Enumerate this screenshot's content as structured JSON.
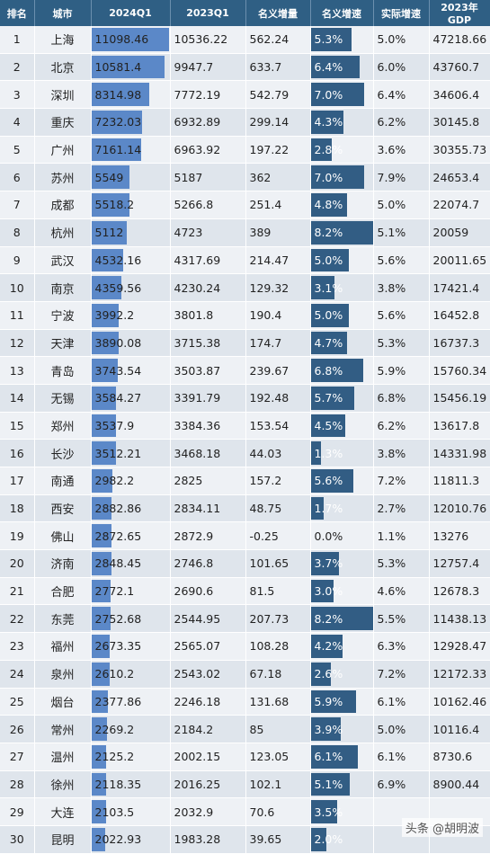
{
  "headers": [
    "排名",
    "城市",
    "2024Q1",
    "2023Q1",
    "名义增量",
    "名义增速",
    "实际增速",
    "2023年GDP"
  ],
  "credit": "头条 @胡明波",
  "colors": {
    "header": "#2f5f84",
    "bar_2024q1": "#5b88c8",
    "bar_rate": "#325d84"
  },
  "rows": [
    {
      "rank": "1",
      "city": "上海",
      "q1_2024": "11098.46",
      "q1_2023": "10536.22",
      "inc": "562.24",
      "rate": "5.3%",
      "real": "5.0%",
      "gdp2023": "47218.66",
      "q1_val": 11098.46,
      "rate_val": 5.3
    },
    {
      "rank": "2",
      "city": "北京",
      "q1_2024": "10581.4",
      "q1_2023": "9947.7",
      "inc": "633.7",
      "rate": "6.4%",
      "real": "6.0%",
      "gdp2023": "43760.7",
      "q1_val": 10581.4,
      "rate_val": 6.4
    },
    {
      "rank": "3",
      "city": "深圳",
      "q1_2024": "8314.98",
      "q1_2023": "7772.19",
      "inc": "542.79",
      "rate": "7.0%",
      "real": "6.4%",
      "gdp2023": "34606.4",
      "q1_val": 8314.98,
      "rate_val": 7.0
    },
    {
      "rank": "4",
      "city": "重庆",
      "q1_2024": "7232.03",
      "q1_2023": "6932.89",
      "inc": "299.14",
      "rate": "4.3%",
      "real": "6.2%",
      "gdp2023": "30145.8",
      "q1_val": 7232.03,
      "rate_val": 4.3
    },
    {
      "rank": "5",
      "city": "广州",
      "q1_2024": "7161.14",
      "q1_2023": "6963.92",
      "inc": "197.22",
      "rate": "2.8%",
      "real": "3.6%",
      "gdp2023": "30355.73",
      "q1_val": 7161.14,
      "rate_val": 2.8
    },
    {
      "rank": "6",
      "city": "苏州",
      "q1_2024": "5549",
      "q1_2023": "5187",
      "inc": "362",
      "rate": "7.0%",
      "real": "7.9%",
      "gdp2023": "24653.4",
      "q1_val": 5549,
      "rate_val": 7.0
    },
    {
      "rank": "7",
      "city": "成都",
      "q1_2024": "5518.2",
      "q1_2023": "5266.8",
      "inc": "251.4",
      "rate": "4.8%",
      "real": "5.0%",
      "gdp2023": "22074.7",
      "q1_val": 5518.2,
      "rate_val": 4.8
    },
    {
      "rank": "8",
      "city": "杭州",
      "q1_2024": "5112",
      "q1_2023": "4723",
      "inc": "389",
      "rate": "8.2%",
      "real": "5.1%",
      "gdp2023": "20059",
      "q1_val": 5112,
      "rate_val": 8.2
    },
    {
      "rank": "9",
      "city": "武汉",
      "q1_2024": "4532.16",
      "q1_2023": "4317.69",
      "inc": "214.47",
      "rate": "5.0%",
      "real": "5.6%",
      "gdp2023": "20011.65",
      "q1_val": 4532.16,
      "rate_val": 5.0
    },
    {
      "rank": "10",
      "city": "南京",
      "q1_2024": "4359.56",
      "q1_2023": "4230.24",
      "inc": "129.32",
      "rate": "3.1%",
      "real": "3.8%",
      "gdp2023": "17421.4",
      "q1_val": 4359.56,
      "rate_val": 3.1
    },
    {
      "rank": "11",
      "city": "宁波",
      "q1_2024": "3992.2",
      "q1_2023": "3801.8",
      "inc": "190.4",
      "rate": "5.0%",
      "real": "5.6%",
      "gdp2023": "16452.8",
      "q1_val": 3992.2,
      "rate_val": 5.0
    },
    {
      "rank": "12",
      "city": "天津",
      "q1_2024": "3890.08",
      "q1_2023": "3715.38",
      "inc": "174.7",
      "rate": "4.7%",
      "real": "5.3%",
      "gdp2023": "16737.3",
      "q1_val": 3890.08,
      "rate_val": 4.7
    },
    {
      "rank": "13",
      "city": "青岛",
      "q1_2024": "3743.54",
      "q1_2023": "3503.87",
      "inc": "239.67",
      "rate": "6.8%",
      "real": "5.9%",
      "gdp2023": "15760.34",
      "q1_val": 3743.54,
      "rate_val": 6.8
    },
    {
      "rank": "14",
      "city": "无锡",
      "q1_2024": "3584.27",
      "q1_2023": "3391.79",
      "inc": "192.48",
      "rate": "5.7%",
      "real": "6.8%",
      "gdp2023": "15456.19",
      "q1_val": 3584.27,
      "rate_val": 5.7
    },
    {
      "rank": "15",
      "city": "郑州",
      "q1_2024": "3537.9",
      "q1_2023": "3384.36",
      "inc": "153.54",
      "rate": "4.5%",
      "real": "6.2%",
      "gdp2023": "13617.8",
      "q1_val": 3537.9,
      "rate_val": 4.5
    },
    {
      "rank": "16",
      "city": "长沙",
      "q1_2024": "3512.21",
      "q1_2023": "3468.18",
      "inc": "44.03",
      "rate": "1.3%",
      "real": "3.8%",
      "gdp2023": "14331.98",
      "q1_val": 3512.21,
      "rate_val": 1.3
    },
    {
      "rank": "17",
      "city": "南通",
      "q1_2024": "2982.2",
      "q1_2023": "2825",
      "inc": "157.2",
      "rate": "5.6%",
      "real": "7.2%",
      "gdp2023": "11811.3",
      "q1_val": 2982.2,
      "rate_val": 5.6
    },
    {
      "rank": "18",
      "city": "西安",
      "q1_2024": "2882.86",
      "q1_2023": "2834.11",
      "inc": "48.75",
      "rate": "1.7%",
      "real": "2.7%",
      "gdp2023": "12010.76",
      "q1_val": 2882.86,
      "rate_val": 1.7
    },
    {
      "rank": "19",
      "city": "佛山",
      "q1_2024": "2872.65",
      "q1_2023": "2872.9",
      "inc": "-0.25",
      "rate": "0.0%",
      "real": "1.1%",
      "gdp2023": "13276",
      "q1_val": 2872.65,
      "rate_val": 0.0
    },
    {
      "rank": "20",
      "city": "济南",
      "q1_2024": "2848.45",
      "q1_2023": "2746.8",
      "inc": "101.65",
      "rate": "3.7%",
      "real": "5.3%",
      "gdp2023": "12757.4",
      "q1_val": 2848.45,
      "rate_val": 3.7
    },
    {
      "rank": "21",
      "city": "合肥",
      "q1_2024": "2772.1",
      "q1_2023": "2690.6",
      "inc": "81.5",
      "rate": "3.0%",
      "real": "4.6%",
      "gdp2023": "12678.3",
      "q1_val": 2772.1,
      "rate_val": 3.0
    },
    {
      "rank": "22",
      "city": "东莞",
      "q1_2024": "2752.68",
      "q1_2023": "2544.95",
      "inc": "207.73",
      "rate": "8.2%",
      "real": "5.5%",
      "gdp2023": "11438.13",
      "q1_val": 2752.68,
      "rate_val": 8.2
    },
    {
      "rank": "23",
      "city": "福州",
      "q1_2024": "2673.35",
      "q1_2023": "2565.07",
      "inc": "108.28",
      "rate": "4.2%",
      "real": "6.3%",
      "gdp2023": "12928.47",
      "q1_val": 2673.35,
      "rate_val": 4.2
    },
    {
      "rank": "24",
      "city": "泉州",
      "q1_2024": "2610.2",
      "q1_2023": "2543.02",
      "inc": "67.18",
      "rate": "2.6%",
      "real": "7.2%",
      "gdp2023": "12172.33",
      "q1_val": 2610.2,
      "rate_val": 2.6
    },
    {
      "rank": "25",
      "city": "烟台",
      "q1_2024": "2377.86",
      "q1_2023": "2246.18",
      "inc": "131.68",
      "rate": "5.9%",
      "real": "6.1%",
      "gdp2023": "10162.46",
      "q1_val": 2377.86,
      "rate_val": 5.9
    },
    {
      "rank": "26",
      "city": "常州",
      "q1_2024": "2269.2",
      "q1_2023": "2184.2",
      "inc": "85",
      "rate": "3.9%",
      "real": "5.0%",
      "gdp2023": "10116.4",
      "q1_val": 2269.2,
      "rate_val": 3.9
    },
    {
      "rank": "27",
      "city": "温州",
      "q1_2024": "2125.2",
      "q1_2023": "2002.15",
      "inc": "123.05",
      "rate": "6.1%",
      "real": "6.1%",
      "gdp2023": "8730.6",
      "q1_val": 2125.2,
      "rate_val": 6.1
    },
    {
      "rank": "28",
      "city": "徐州",
      "q1_2024": "2118.35",
      "q1_2023": "2016.25",
      "inc": "102.1",
      "rate": "5.1%",
      "real": "6.9%",
      "gdp2023": "8900.44",
      "q1_val": 2118.35,
      "rate_val": 5.1
    },
    {
      "rank": "29",
      "city": "大连",
      "q1_2024": "2103.5",
      "q1_2023": "2032.9",
      "inc": "70.6",
      "rate": "3.5%",
      "real": "",
      "gdp2023": "",
      "q1_val": 2103.5,
      "rate_val": 3.5
    },
    {
      "rank": "30",
      "city": "昆明",
      "q1_2024": "2022.93",
      "q1_2023": "1983.28",
      "inc": "39.65",
      "rate": "2.0%",
      "real": "",
      "gdp2023": "",
      "q1_val": 2022.93,
      "rate_val": 2.0
    }
  ]
}
